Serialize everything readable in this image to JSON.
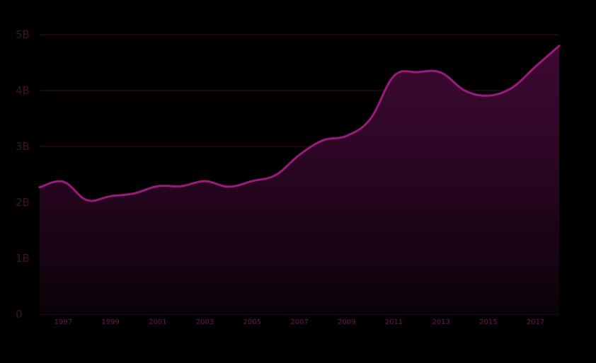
{
  "chart_data": {
    "type": "area",
    "title": "",
    "xlabel": "",
    "ylabel": "",
    "x": [
      1996,
      1997,
      1998,
      1999,
      2000,
      2001,
      2002,
      2003,
      2004,
      2005,
      2006,
      2007,
      2008,
      2009,
      2010,
      2011,
      2012,
      2013,
      2014,
      2015,
      2016,
      2017,
      2018
    ],
    "series": [
      {
        "values": [
          2.27,
          2.37,
          2.04,
          2.11,
          2.16,
          2.29,
          2.29,
          2.38,
          2.28,
          2.38,
          2.49,
          2.85,
          3.11,
          3.19,
          3.49,
          4.26,
          4.33,
          4.32,
          4.0,
          3.91,
          4.05,
          4.43,
          4.8
        ]
      }
    ],
    "xlim": [
      1996,
      2018
    ],
    "ylim": [
      0,
      5
    ],
    "y_ticks": [
      {
        "value": 0,
        "label": "0"
      },
      {
        "value": 1,
        "label": "1B"
      },
      {
        "value": 2,
        "label": "2B"
      },
      {
        "value": 3,
        "label": "3B"
      },
      {
        "value": 4,
        "label": "4B"
      },
      {
        "value": 5,
        "label": "5B"
      }
    ],
    "x_ticks": [
      {
        "value": 1997,
        "label": "1997"
      },
      {
        "value": 1999,
        "label": "1999"
      },
      {
        "value": 2001,
        "label": "2001"
      },
      {
        "value": 2003,
        "label": "2003"
      },
      {
        "value": 2005,
        "label": "2005"
      },
      {
        "value": 2007,
        "label": "2007"
      },
      {
        "value": 2009,
        "label": "2009"
      },
      {
        "value": 2011,
        "label": "2011"
      },
      {
        "value": 2013,
        "label": "2013"
      },
      {
        "value": 2015,
        "label": "2015"
      },
      {
        "value": 2017,
        "label": "2017"
      }
    ],
    "grid": true,
    "legend": "none",
    "colors": {
      "line": "#9b1a7e",
      "fill_top": "#4a0a3c",
      "fill_bottom": "#0a0208",
      "grid": "#3a0a2c",
      "tick_x": "#6b1658",
      "tick_y": "#3f1033",
      "background": "#000000"
    }
  }
}
